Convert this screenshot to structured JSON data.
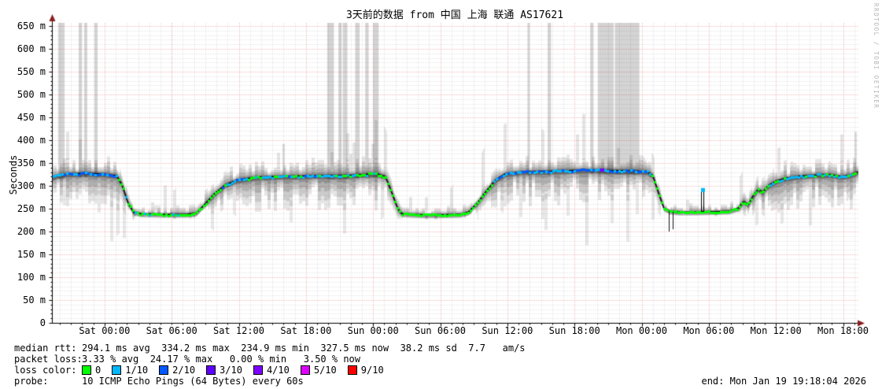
{
  "title": "3天前的数据 from 中国 上海 联通 AS17621",
  "ylabel": "Seconds",
  "watermark": "RRDTOOL / TOBI OETIKER",
  "stats": {
    "median_label": "median rtt:",
    "median_value": "294.1 ms avg  334.2 ms max  234.9 ms min  327.5 ms now  38.2 ms sd  7.7   am/s",
    "loss_label": "packet loss:",
    "loss_value": "3.33 % avg  24.17 % max   0.00 % min   3.50 % now",
    "loss_color_label": "loss color:",
    "probe_label": "probe:",
    "probe_value": "10 ICMP Echo Pings (64 Bytes) every 60s",
    "end_value": "end: Mon Jan 19 19:18:04 2026"
  },
  "chart_data": {
    "type": "smokeping-latency (line + smoke area)",
    "title": "3天前的数据 from 中国 上海 联通 AS17621",
    "ylabel": "Seconds",
    "x_unit": "hours since Fri 19:18",
    "x_range": [
      0,
      72
    ],
    "ylim": [
      0,
      650
    ],
    "y_unit": "ms (shown as m)",
    "grid": {
      "major_color": "#f09c9c",
      "minor_color": "#d6d6d6",
      "axis_color": "#000000",
      "arrow_color": "#8a1f1f"
    },
    "y_ticks": [
      {
        "v": 0,
        "label": "0"
      },
      {
        "v": 50,
        "label": "50 m"
      },
      {
        "v": 100,
        "label": "100 m"
      },
      {
        "v": 150,
        "label": "150 m"
      },
      {
        "v": 200,
        "label": "200 m"
      },
      {
        "v": 250,
        "label": "250 m"
      },
      {
        "v": 300,
        "label": "300 m"
      },
      {
        "v": 350,
        "label": "350 m"
      },
      {
        "v": 400,
        "label": "400 m"
      },
      {
        "v": 450,
        "label": "450 m"
      },
      {
        "v": 500,
        "label": "500 m"
      },
      {
        "v": 550,
        "label": "550 m"
      },
      {
        "v": 600,
        "label": "600 m"
      },
      {
        "v": 650,
        "label": "650 m"
      }
    ],
    "x_ticks": [
      {
        "h": 4.7,
        "label": "Sat 00:00"
      },
      {
        "h": 10.7,
        "label": "Sat 06:00"
      },
      {
        "h": 16.7,
        "label": "Sat 12:00"
      },
      {
        "h": 22.7,
        "label": "Sat 18:00"
      },
      {
        "h": 28.7,
        "label": "Sun 00:00"
      },
      {
        "h": 34.7,
        "label": "Sun 06:00"
      },
      {
        "h": 40.7,
        "label": "Sun 12:00"
      },
      {
        "h": 46.7,
        "label": "Sun 18:00"
      },
      {
        "h": 52.7,
        "label": "Mon 00:00"
      },
      {
        "h": 58.7,
        "label": "Mon 06:00"
      },
      {
        "h": 64.7,
        "label": "Mon 12:00"
      },
      {
        "h": 70.7,
        "label": "Mon 18:00"
      }
    ],
    "median_ms_keypoints": [
      [
        0,
        318
      ],
      [
        0.5,
        322
      ],
      [
        1.5,
        326
      ],
      [
        3,
        327
      ],
      [
        4.5,
        326
      ],
      [
        5.8,
        322
      ],
      [
        6.3,
        300
      ],
      [
        6.8,
        262
      ],
      [
        7.3,
        242
      ],
      [
        8,
        238
      ],
      [
        10,
        237
      ],
      [
        12,
        237
      ],
      [
        12.9,
        240
      ],
      [
        13.6,
        258
      ],
      [
        14.5,
        282
      ],
      [
        15.5,
        302
      ],
      [
        16.5,
        312
      ],
      [
        18,
        318
      ],
      [
        20,
        320
      ],
      [
        22,
        321
      ],
      [
        24,
        322
      ],
      [
        26,
        322
      ],
      [
        27.5,
        324
      ],
      [
        29,
        326
      ],
      [
        29.8,
        320
      ],
      [
        30.3,
        290
      ],
      [
        30.9,
        250
      ],
      [
        31.3,
        238
      ],
      [
        33,
        236
      ],
      [
        35,
        236
      ],
      [
        36.5,
        237
      ],
      [
        37.2,
        242
      ],
      [
        38,
        262
      ],
      [
        38.8,
        288
      ],
      [
        39.6,
        312
      ],
      [
        40.5,
        326
      ],
      [
        42,
        330
      ],
      [
        44,
        331
      ],
      [
        46,
        333
      ],
      [
        47.5,
        334
      ],
      [
        49,
        334
      ],
      [
        50.5,
        333
      ],
      [
        52,
        332
      ],
      [
        53.2,
        331
      ],
      [
        53.7,
        322
      ],
      [
        54.2,
        285
      ],
      [
        54.7,
        250
      ],
      [
        55.2,
        244
      ],
      [
        56,
        242
      ],
      [
        57.5,
        242
      ],
      [
        59,
        243
      ],
      [
        60.5,
        244
      ],
      [
        61.3,
        250
      ],
      [
        61.8,
        266
      ],
      [
        62.2,
        258
      ],
      [
        62.7,
        280
      ],
      [
        63.1,
        292
      ],
      [
        63.5,
        286
      ],
      [
        64,
        300
      ],
      [
        64.7,
        310
      ],
      [
        65.5,
        316
      ],
      [
        66.5,
        320
      ],
      [
        68,
        323
      ],
      [
        69.5,
        324
      ],
      [
        70.5,
        320
      ],
      [
        71.3,
        323
      ],
      [
        72,
        330
      ]
    ],
    "smoke_band_keypoints": [
      [
        0,
        28,
        55
      ],
      [
        3,
        30,
        60
      ],
      [
        5.8,
        35,
        65
      ],
      [
        6.8,
        20,
        30
      ],
      [
        7.5,
        12,
        6
      ],
      [
        10,
        15,
        6
      ],
      [
        12.5,
        18,
        6
      ],
      [
        13.5,
        25,
        15
      ],
      [
        15,
        30,
        45
      ],
      [
        17,
        30,
        60
      ],
      [
        20,
        28,
        62
      ],
      [
        23,
        30,
        58
      ],
      [
        26,
        30,
        60
      ],
      [
        29,
        32,
        62
      ],
      [
        30.5,
        20,
        25
      ],
      [
        31.5,
        12,
        6
      ],
      [
        34,
        14,
        6
      ],
      [
        36.5,
        16,
        6
      ],
      [
        38,
        20,
        20
      ],
      [
        39.5,
        28,
        45
      ],
      [
        41,
        28,
        60
      ],
      [
        44,
        26,
        62
      ],
      [
        47,
        28,
        58
      ],
      [
        50,
        26,
        60
      ],
      [
        52.5,
        28,
        62
      ],
      [
        54.3,
        18,
        25
      ],
      [
        55.3,
        12,
        6
      ],
      [
        57,
        14,
        6
      ],
      [
        59,
        13,
        6
      ],
      [
        61,
        15,
        8
      ],
      [
        62,
        20,
        25
      ],
      [
        63.5,
        25,
        45
      ],
      [
        65,
        30,
        60
      ],
      [
        67,
        32,
        62
      ],
      [
        69,
        30,
        58
      ],
      [
        71,
        33,
        60
      ],
      [
        72,
        30,
        55
      ]
    ],
    "loss_bars_hours": [
      [
        0.56,
        1.13
      ],
      [
        2.39,
        2.67
      ],
      [
        2.88,
        3.16
      ],
      [
        3.8,
        4.08
      ],
      [
        24.6,
        25.2
      ],
      [
        25.6,
        25.9
      ],
      [
        26.0,
        26.4
      ],
      [
        27.1,
        27.5
      ],
      [
        28.0,
        28.3
      ],
      [
        28.7,
        29.2
      ],
      [
        42.5,
        42.7
      ],
      [
        44.3,
        44.6
      ],
      [
        48.1,
        48.4
      ],
      [
        48.8,
        50.2
      ],
      [
        50.3,
        52.5
      ]
    ],
    "up_spikes": [
      [
        20.7,
        392
      ],
      [
        71.8,
        418
      ]
    ],
    "down_spikes": [
      [
        55.1,
        200
      ],
      [
        55.5,
        205
      ]
    ],
    "event_spike": {
      "h": 58.15,
      "from_ms": 244,
      "top_ms": 290,
      "cap_color": "1/10"
    },
    "loss_palette": {
      "0": "#00ff00",
      "1/10": "#00b8ff",
      "2/10": "#0059ff",
      "3/10": "#5e00ff",
      "4/10": "#7e00ff",
      "5/10": "#dd00ff",
      "9/10": "#ff0000"
    },
    "loss_segments": [
      {
        "from": 0,
        "to": 5.8,
        "palette": [
          "2/10",
          "1/10",
          "2/10",
          "2/10",
          "1/10"
        ]
      },
      {
        "from": 5.8,
        "to": 15.2,
        "palette": [
          "0",
          "0",
          "0",
          "1/10",
          "0"
        ]
      },
      {
        "from": 15.2,
        "to": 29.6,
        "palette": [
          "1/10",
          "0",
          "1/10",
          "2/10",
          "0",
          "1/10"
        ]
      },
      {
        "from": 29.6,
        "to": 39.5,
        "palette": [
          "0"
        ]
      },
      {
        "from": 39.5,
        "to": 53.5,
        "palette": [
          "1/10",
          "2/10",
          "1/10",
          "1/10",
          "2/10"
        ]
      },
      {
        "from": 53.5,
        "to": 63.8,
        "palette": [
          "0"
        ]
      },
      {
        "from": 63.8,
        "to": 72.1,
        "palette": [
          "0",
          "1/10",
          "0",
          "1/10",
          "1/10"
        ]
      }
    ],
    "loss_dots": [
      {
        "h": 49.15,
        "color": "4/10"
      }
    ],
    "stats": {
      "median_rtt": {
        "avg_ms": 294.1,
        "max_ms": 334.2,
        "min_ms": 234.9,
        "now_ms": 327.5,
        "sd_ms": 38.2,
        "am_s": 7.7
      },
      "packet_loss": {
        "avg_pct": 3.33,
        "max_pct": 24.17,
        "min_pct": 0.0,
        "now_pct": 3.5
      }
    }
  },
  "loss_colors": [
    {
      "label": "0",
      "color": "#00ff00"
    },
    {
      "label": "1/10",
      "color": "#00b8ff"
    },
    {
      "label": "2/10",
      "color": "#0059ff"
    },
    {
      "label": "3/10",
      "color": "#5e00ff"
    },
    {
      "label": "4/10",
      "color": "#7e00ff"
    },
    {
      "label": "5/10",
      "color": "#dd00ff"
    },
    {
      "label": "9/10",
      "color": "#ff0000"
    }
  ]
}
